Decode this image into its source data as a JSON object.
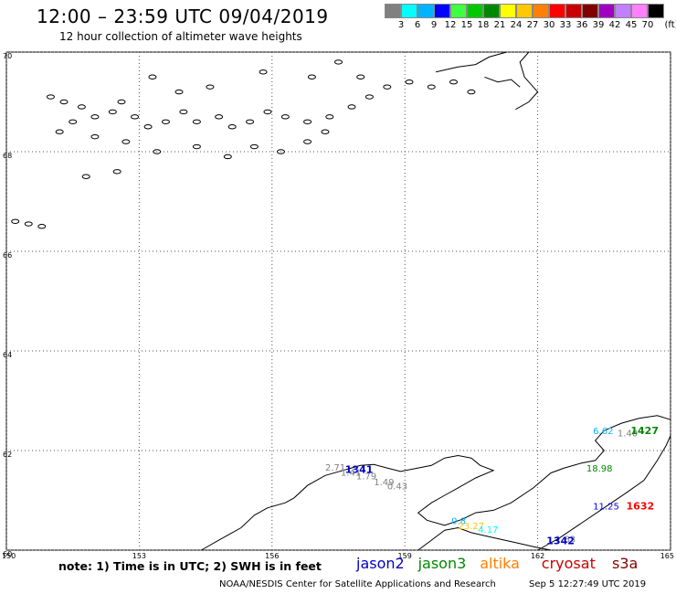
{
  "header": {
    "title": "12:00 – 23:59 UTC 09/04/2019",
    "subtitle": "12 hour collection of altimeter wave heights"
  },
  "legend": {
    "unit": "(ft)",
    "bins": [
      {
        "label": "3",
        "color": "#808080"
      },
      {
        "label": "6",
        "color": "#00ffff"
      },
      {
        "label": "9",
        "color": "#00b4ff"
      },
      {
        "label": "12",
        "color": "#0000ff"
      },
      {
        "label": "15",
        "color": "#40ff40"
      },
      {
        "label": "18",
        "color": "#00c800"
      },
      {
        "label": "21",
        "color": "#008800"
      },
      {
        "label": "24",
        "color": "#ffff00"
      },
      {
        "label": "27",
        "color": "#ffc800"
      },
      {
        "label": "30",
        "color": "#ff8000"
      },
      {
        "label": "33",
        "color": "#ff0000"
      },
      {
        "label": "36",
        "color": "#c80000"
      },
      {
        "label": "39",
        "color": "#800000"
      },
      {
        "label": "42",
        "color": "#a000c0"
      },
      {
        "label": "45",
        "color": "#c080ff"
      },
      {
        "label": "70",
        "color": "#ff80ff"
      },
      {
        "label": "",
        "color": "#000000"
      }
    ]
  },
  "map": {
    "lon_min": 150,
    "lon_max": 165,
    "lat_min": 60,
    "lat_max": 70,
    "lon_ticks": [
      "150",
      "153",
      "156",
      "159",
      "162",
      "165"
    ],
    "lat_ticks": [
      "60",
      "62",
      "64",
      "66",
      "68",
      "70"
    ],
    "grid": true,
    "observations": [
      {
        "lon": 157.2,
        "lat": 61.6,
        "value": "2.71",
        "color": "#808080"
      },
      {
        "lon": 157.65,
        "lat": 61.55,
        "value": "1341",
        "color": "#0000cc",
        "bold": true,
        "id": true
      },
      {
        "lon": 157.55,
        "lat": 61.5,
        "value": "1.41",
        "color": "#808080"
      },
      {
        "lon": 157.9,
        "lat": 61.42,
        "value": "1.79",
        "color": "#808080"
      },
      {
        "lon": 158.3,
        "lat": 61.3,
        "value": "1.49",
        "color": "#808080"
      },
      {
        "lon": 158.6,
        "lat": 61.22,
        "value": "0.43",
        "color": "#808080"
      },
      {
        "lon": 160.05,
        "lat": 60.52,
        "value": "0.8",
        "color": "#00b4ff"
      },
      {
        "lon": 160.2,
        "lat": 60.42,
        "value": "23.27",
        "color": "#ffc800"
      },
      {
        "lon": 160.65,
        "lat": 60.35,
        "value": "4.17",
        "color": "#00ffff"
      },
      {
        "lon": 162.4,
        "lat": 60.16,
        "value": "1.83",
        "color": "#808080"
      },
      {
        "lon": 162.2,
        "lat": 60.12,
        "value": "1342",
        "color": "#0000cc",
        "bold": true,
        "id": true
      },
      {
        "lon": 163.25,
        "lat": 62.33,
        "value": "6.62",
        "color": "#00b4ff"
      },
      {
        "lon": 163.8,
        "lat": 62.28,
        "value": "1.40",
        "color": "#808080"
      },
      {
        "lon": 164.1,
        "lat": 62.33,
        "value": "1427",
        "color": "#008800",
        "bold": true,
        "id": true
      },
      {
        "lon": 163.1,
        "lat": 61.58,
        "value": "18.98",
        "color": "#008800"
      },
      {
        "lon": 163.25,
        "lat": 60.82,
        "value": "11.25",
        "color": "#0000ff"
      },
      {
        "lon": 164.0,
        "lat": 60.82,
        "value": "1632",
        "color": "#ff0000",
        "bold": true,
        "id": true
      }
    ]
  },
  "footer": {
    "note": "note: 1) Time is in UTC; 2) SWH is in feet",
    "satellites": [
      {
        "name": "jason2",
        "color": "#0000cc"
      },
      {
        "name": "jason3",
        "color": "#008800"
      },
      {
        "name": "altika",
        "color": "#ff8000"
      },
      {
        "name": "cryosat",
        "color": "#cc0000"
      },
      {
        "name": "s3a",
        "color": "#800000"
      }
    ],
    "credit": "NOAA/NESDIS Center for Satellite Applications and Research",
    "timestamp": "Sep  5 12:27:49 UTC 2019"
  }
}
